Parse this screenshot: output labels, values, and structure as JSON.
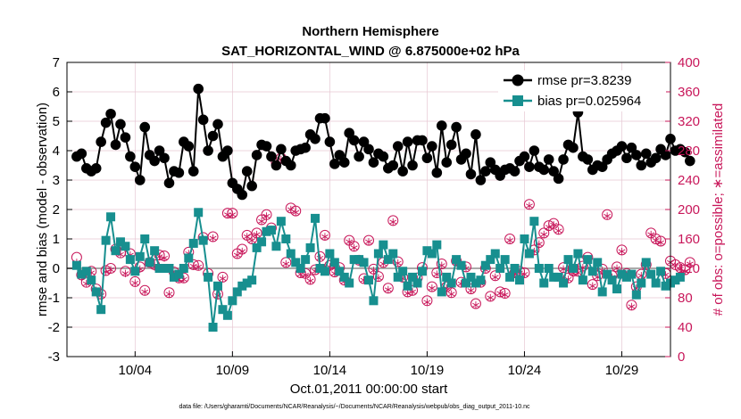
{
  "chart_data": {
    "type": "line",
    "title_line1": "Northern Hemisphere",
    "title_line2": "SAT_HORIZONTAL_WIND @ 6.875000e+02 hPa",
    "xlabel": "Oct.01,2011 00:00:00 start",
    "ylabel_left": "rmse and bias (model - observation)",
    "ylabel_right": "# of obs: o=possible; ∗=assimilated",
    "footnote": "data file: /Users/gharamti/Documents/NCAR/Reanalysis/~/Documents/NCAR/Reanalysis/webpub/obs_diag_output_2011-10.nc",
    "x_range_days": [
      0.5,
      31.5
    ],
    "y_left_range": [
      -3,
      7
    ],
    "y_right_range": [
      0,
      400
    ],
    "x_ticks": [
      {
        "day": 4,
        "label": "10/04"
      },
      {
        "day": 9,
        "label": "10/09"
      },
      {
        "day": 14,
        "label": "10/14"
      },
      {
        "day": 19,
        "label": "10/19"
      },
      {
        "day": 24,
        "label": "10/24"
      },
      {
        "day": 29,
        "label": "10/29"
      }
    ],
    "y_left_ticks": [
      -3,
      -2,
      -1,
      0,
      1,
      2,
      3,
      4,
      5,
      6,
      7
    ],
    "y_right_ticks": [
      0,
      40,
      80,
      120,
      160,
      200,
      240,
      280,
      320,
      360,
      400
    ],
    "series": [
      {
        "name": "rmse pr=3.8239",
        "color": "#000000",
        "axis": "left",
        "values": [
          3.8,
          3.9,
          3.4,
          3.3,
          3.4,
          4.3,
          4.95,
          5.25,
          4.2,
          4.9,
          4.45,
          3.8,
          3.45,
          3.0,
          4.8,
          3.85,
          3.65,
          4.0,
          3.75,
          2.9,
          3.3,
          3.25,
          4.3,
          4.15,
          3.3,
          6.1,
          5.05,
          4.0,
          4.5,
          4.9,
          3.8,
          4.0,
          2.9,
          2.7,
          2.5,
          3.3,
          2.8,
          3.85,
          4.2,
          4.15,
          3.8,
          3.5,
          4.05,
          3.65,
          3.5,
          4.0,
          4.05,
          4.1,
          4.55,
          4.4,
          5.1,
          5.1,
          4.3,
          3.55,
          3.85,
          3.6,
          4.6,
          4.35,
          3.8,
          4.3,
          4.05,
          3.6,
          3.9,
          3.8,
          3.4,
          3.5,
          4.15,
          3.3,
          4.3,
          3.5,
          4.35,
          4.35,
          3.75,
          4.15,
          3.25,
          4.85,
          3.6,
          4.2,
          4.8,
          3.7,
          3.9,
          3.2,
          4.55,
          3.0,
          3.3,
          3.6,
          3.35,
          3.15,
          3.35,
          3.4,
          3.3,
          3.65,
          3.8,
          3.45,
          4.0,
          3.45,
          3.35,
          3.7,
          3.3,
          3.05,
          3.7,
          4.2,
          4.1,
          5.3,
          3.8,
          3.7,
          3.35,
          3.5,
          3.45,
          3.7,
          3.9,
          4.0,
          4.15,
          3.75,
          4.1,
          3.85,
          3.5,
          3.9,
          3.6,
          3.75,
          4.05,
          3.85,
          4.4,
          4.0,
          4.05,
          3.95,
          3.65
        ]
      },
      {
        "name": "bias pr=0.025964",
        "color": "#178f8f",
        "axis": "left",
        "values": [
          0.1,
          -0.2,
          -0.1,
          -0.4,
          -0.8,
          -1.4,
          0.95,
          1.75,
          0.6,
          0.9,
          0.75,
          0.3,
          -0.1,
          0.4,
          1.0,
          0.2,
          0.6,
          0.0,
          0.0,
          0.0,
          -0.3,
          -0.2,
          0.0,
          0.35,
          0.85,
          1.9,
          0.95,
          -0.3,
          -2.0,
          -0.6,
          -1.4,
          -1.6,
          -1.1,
          -0.8,
          -0.6,
          -0.5,
          -0.4,
          0.7,
          0.9,
          1.25,
          1.3,
          0.75,
          1.6,
          1.0,
          0.5,
          0.2,
          0.0,
          0.3,
          0.7,
          1.7,
          0.0,
          -0.1,
          0.5,
          0.2,
          -0.1,
          -0.3,
          -0.5,
          0.3,
          0.3,
          0.2,
          -0.4,
          -1.1,
          0.5,
          0.8,
          0.3,
          0.5,
          -0.3,
          -0.1,
          -0.6,
          -0.3,
          -0.5,
          -0.1,
          0.6,
          0.5,
          0.8,
          -0.8,
          -0.3,
          -0.5,
          0.3,
          0.1,
          -0.5,
          -0.3,
          -0.5,
          -0.4,
          0.1,
          0.3,
          0.5,
          0.0,
          0.3,
          -0.3,
          0.0,
          -0.4,
          1.0,
          0.5,
          1.6,
          0.0,
          -0.5,
          0.0,
          -0.3,
          -0.3,
          -0.5,
          0.3,
          0.0,
          0.5,
          -0.4,
          0.3,
          -0.1,
          0.2,
          -0.8,
          -0.2,
          -0.4,
          -0.7,
          -0.2,
          -0.3,
          -0.2,
          -0.9,
          -0.5,
          0.2,
          -0.2,
          -0.5,
          -0.1,
          -0.6,
          -0.5,
          -0.4,
          -0.3
        ]
      },
      {
        "name": "possible",
        "color": "#c8175a",
        "axis": "right",
        "values": [
          135,
          111,
          101,
          116,
          92,
          85,
          117,
          120,
          146,
          141,
          116,
          140,
          102,
          122,
          90,
          128,
          125,
          138,
          137,
          87,
          115,
          107,
          107,
          142,
          125,
          124,
          162,
          113,
          163,
          85,
          108,
          195,
          195,
          140,
          146,
          165,
          160,
          168,
          186,
          193,
          175,
          264,
          270,
          128,
          202,
          198,
          114,
          113,
          105,
          118,
          136,
          165,
          124,
          115,
          121,
          104,
          158,
          150,
          131,
          106,
          158,
          119,
          109,
          128,
          93,
          185,
          129,
          108,
          88,
          90,
          107,
          121,
          76,
          95,
          114,
          126,
          95,
          87,
          130,
          101,
          122,
          92,
          72,
          101,
          120,
          82,
          110,
          88,
          86,
          160,
          114,
          116,
          114,
          207,
          145,
          155,
          168,
          178,
          181,
          173,
          121,
          107,
          116,
          116,
          123,
          135,
          98,
          110,
          119,
          193,
          110,
          122,
          145,
          113,
          70,
          95,
          112,
          125,
          168,
          160,
          157,
          113,
          130,
          125,
          121,
          118,
          128
        ]
      },
      {
        "name": "assimilated",
        "color": "#c8175a",
        "axis": "right",
        "values": [
          128,
          108,
          99,
          114,
          90,
          83,
          115,
          118,
          143,
          139,
          113,
          138,
          100,
          119,
          88,
          126,
          122,
          136,
          134,
          85,
          112,
          105,
          105,
          140,
          123,
          122,
          160,
          111,
          161,
          83,
          106,
          193,
          193,
          138,
          143,
          163,
          158,
          166,
          184,
          191,
          173,
          262,
          268,
          126,
          200,
          196,
          112,
          111,
          103,
          116,
          134,
          163,
          122,
          113,
          119,
          102,
          156,
          148,
          129,
          104,
          156,
          117,
          107,
          126,
          91,
          183,
          127,
          106,
          86,
          88,
          105,
          119,
          74,
          93,
          112,
          124,
          93,
          85,
          128,
          99,
          120,
          90,
          70,
          99,
          118,
          80,
          108,
          86,
          84,
          158,
          112,
          114,
          112,
          205,
          143,
          153,
          166,
          176,
          179,
          171,
          119,
          105,
          114,
          114,
          121,
          133,
          96,
          108,
          117,
          191,
          108,
          120,
          143,
          111,
          68,
          93,
          110,
          123,
          166,
          158,
          155,
          111,
          128,
          123,
          119,
          116,
          126
        ]
      }
    ]
  }
}
